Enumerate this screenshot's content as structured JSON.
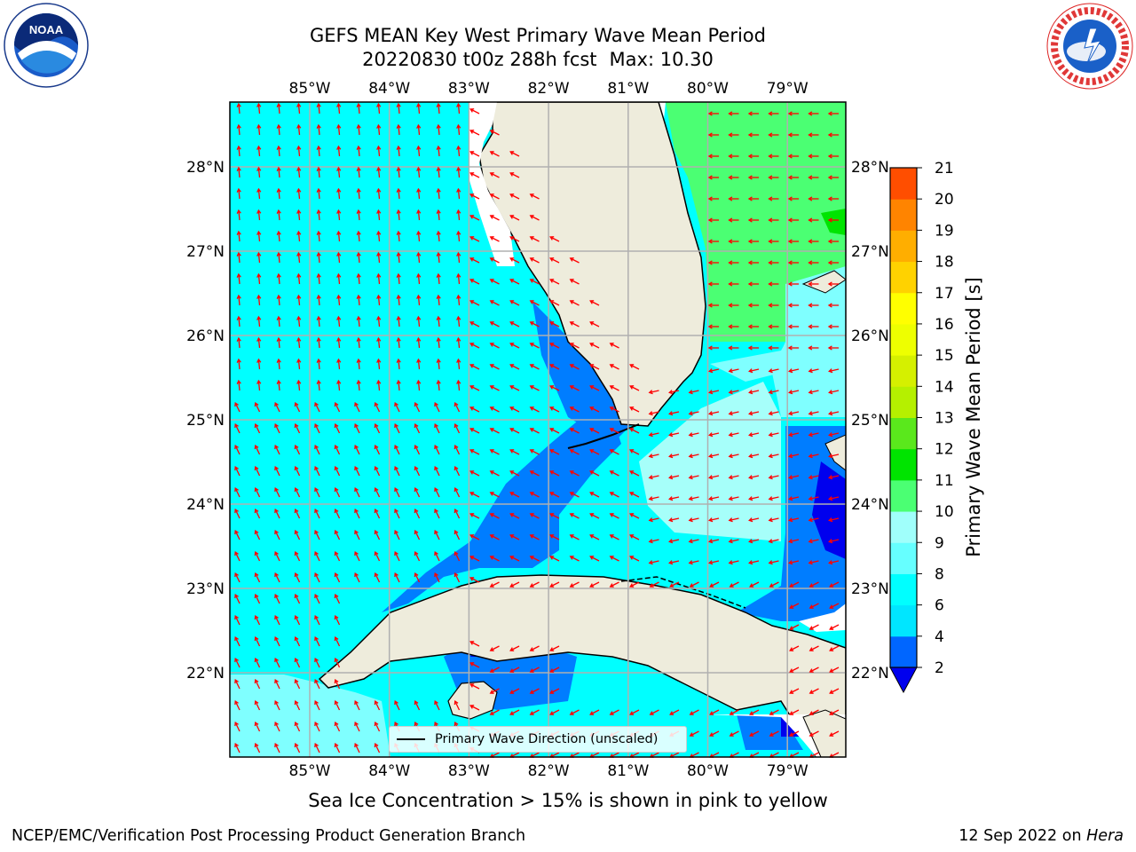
{
  "title": {
    "line1": "GEFS MEAN Key West Primary Wave Mean Period",
    "line2_left": "20220830 t00z 288h fcst",
    "line2_right": "Max: 10.30"
  },
  "map": {
    "lon_labels": [
      "85°W",
      "84°W",
      "83°W",
      "82°W",
      "81°W",
      "80°W",
      "79°W"
    ],
    "lat_labels": [
      "28°N",
      "27°N",
      "26°N",
      "25°N",
      "24°N",
      "23°N",
      "22°N"
    ],
    "legend_label": "Primary Wave Direction (unscaled)",
    "colors": {
      "land": "#eeecdc",
      "cyan": "#00ffff",
      "dark_blue_band": "#007dff",
      "deep_blue": "#0000ee",
      "light_cyan": "#7fffff",
      "lighter_cyan": "#a6fffa",
      "green": "#4bff73",
      "bright_green": "#00e400",
      "arrow": "#ff0000",
      "grid": "#b0b0b0",
      "coast": "#000000"
    }
  },
  "colorbar": {
    "label": "Primary Wave Mean Period [s]",
    "ticks": [
      "2",
      "4",
      "6",
      "8",
      "9",
      "10",
      "11",
      "12",
      "13",
      "14",
      "15",
      "16",
      "17",
      "18",
      "19",
      "20",
      "21"
    ],
    "colors": [
      "#0066ff",
      "#00e6ff",
      "#00ffff",
      "#66ffff",
      "#a0fffb",
      "#4bff73",
      "#00e400",
      "#5ae81c",
      "#b5f000",
      "#d5f000",
      "#eeff00",
      "#ffff00",
      "#ffd200",
      "#ffae00",
      "#ff8400",
      "#ff4e00",
      "#ff1e00",
      "#ff0000"
    ],
    "under_color": "#0000ee"
  },
  "note": "Sea Ice Concentration > 15% is shown in pink to yellow",
  "footer": {
    "left": "NCEP/EMC/Verification Post Processing Product Generation Branch",
    "date": "12 Sep 2022 on",
    "host": "Hera"
  },
  "logos": {
    "left_icon": "noaa-logo",
    "right_icon": "nws-logo"
  }
}
